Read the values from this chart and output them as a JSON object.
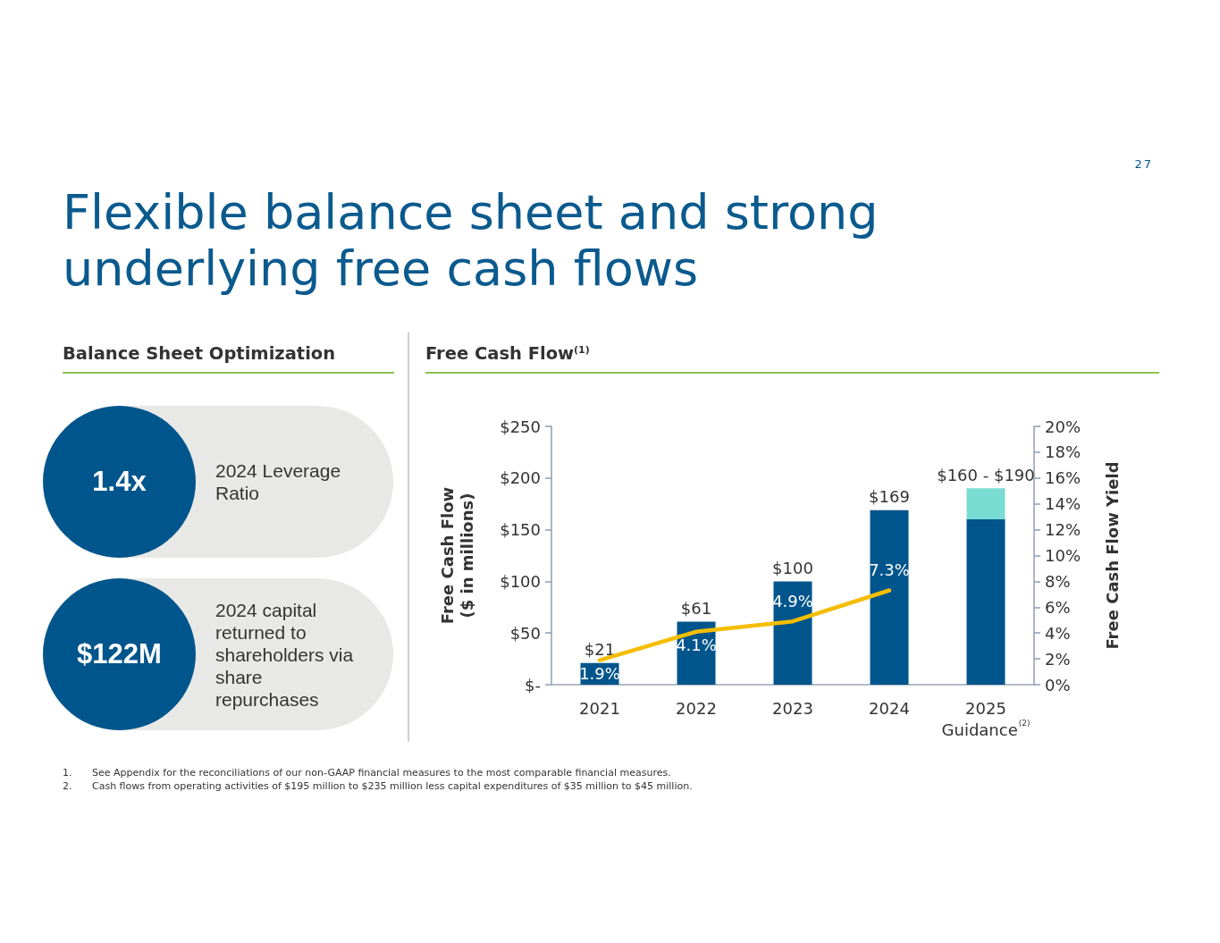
{
  "chart_data": [
    {
      "type": "other",
      "title": "Flexible balance sheet and strong underlying free cash flows",
      "subtitle": "Balance Sheet Optimization",
      "annotations": [
        "27",
        "1.4x",
        "2024 Leverage Ratio",
        "$122M",
        "2024 capital returned to shareholders via share repurchases"
      ]
    },
    {
      "type": "bar",
      "title": "Free Cash Flow$^{(1)}$",
      "categories": [
        "2021",
        "2022",
        "2023",
        "2024",
        "2025\nGuidance$^{(2)}$"
      ],
      "stacked": true,
      "series": [
        {
          "color": "#00558c",
          "values": [
            21,
            61,
            100,
            169,
            160
          ]
        },
        {
          "color": "#7adcd3",
          "values": [
            null,
            null,
            null,
            null,
            30
          ]
        },
        {
          "type": "line",
          "axis": "y2",
          "color": "#f5bd00",
          "values": [
            1.9,
            4.1,
            4.9,
            7.3,
            null
          ],
          "value_labels": [
            "1.9%",
            "4.1%",
            "4.9%",
            "7.3%",
            null
          ]
        }
      ],
      "totals": [
        "$21",
        "$61",
        "$100",
        "$169",
        "$160 - $190"
      ],
      "ylabel": "Free Cash Flow\n($ in millions)",
      "y2label": "Free Cash Flow Yield",
      "ylim": [
        0,
        250
      ],
      "yticks": [
        {
          "value": 0,
          "label": "$-"
        },
        {
          "value": 50,
          "label": "$50"
        },
        {
          "value": 100,
          "label": "$100"
        },
        {
          "value": 150,
          "label": "$150"
        },
        {
          "value": 200,
          "label": "$200"
        },
        {
          "value": 250,
          "label": "$250"
        }
      ],
      "y2lim": [
        0,
        20
      ],
      "y2ticks": [
        {
          "value": 0,
          "label": "0%"
        },
        {
          "value": 2,
          "label": "2%"
        },
        {
          "value": 4,
          "label": "4%"
        },
        {
          "value": 6,
          "label": "6%"
        },
        {
          "value": 8,
          "label": "8%"
        },
        {
          "value": 10,
          "label": "10%"
        },
        {
          "value": 12,
          "label": "12%"
        },
        {
          "value": 14,
          "label": "14%"
        },
        {
          "value": 16,
          "label": "16%"
        },
        {
          "value": 18,
          "label": "18%"
        },
        {
          "value": 20,
          "label": "20%"
        }
      ],
      "grid": false,
      "marker": "none",
      "line_style": "solid",
      "annotations": [
        "1. See Appendix for the reconciliations of our non-GAAP financial measures to the most comparable financial measures.",
        "2. Cash flows from operating activities of $195 million to $235 million less capital expenditures of $35 million to $45 million."
      ]
    }
  ]
}
